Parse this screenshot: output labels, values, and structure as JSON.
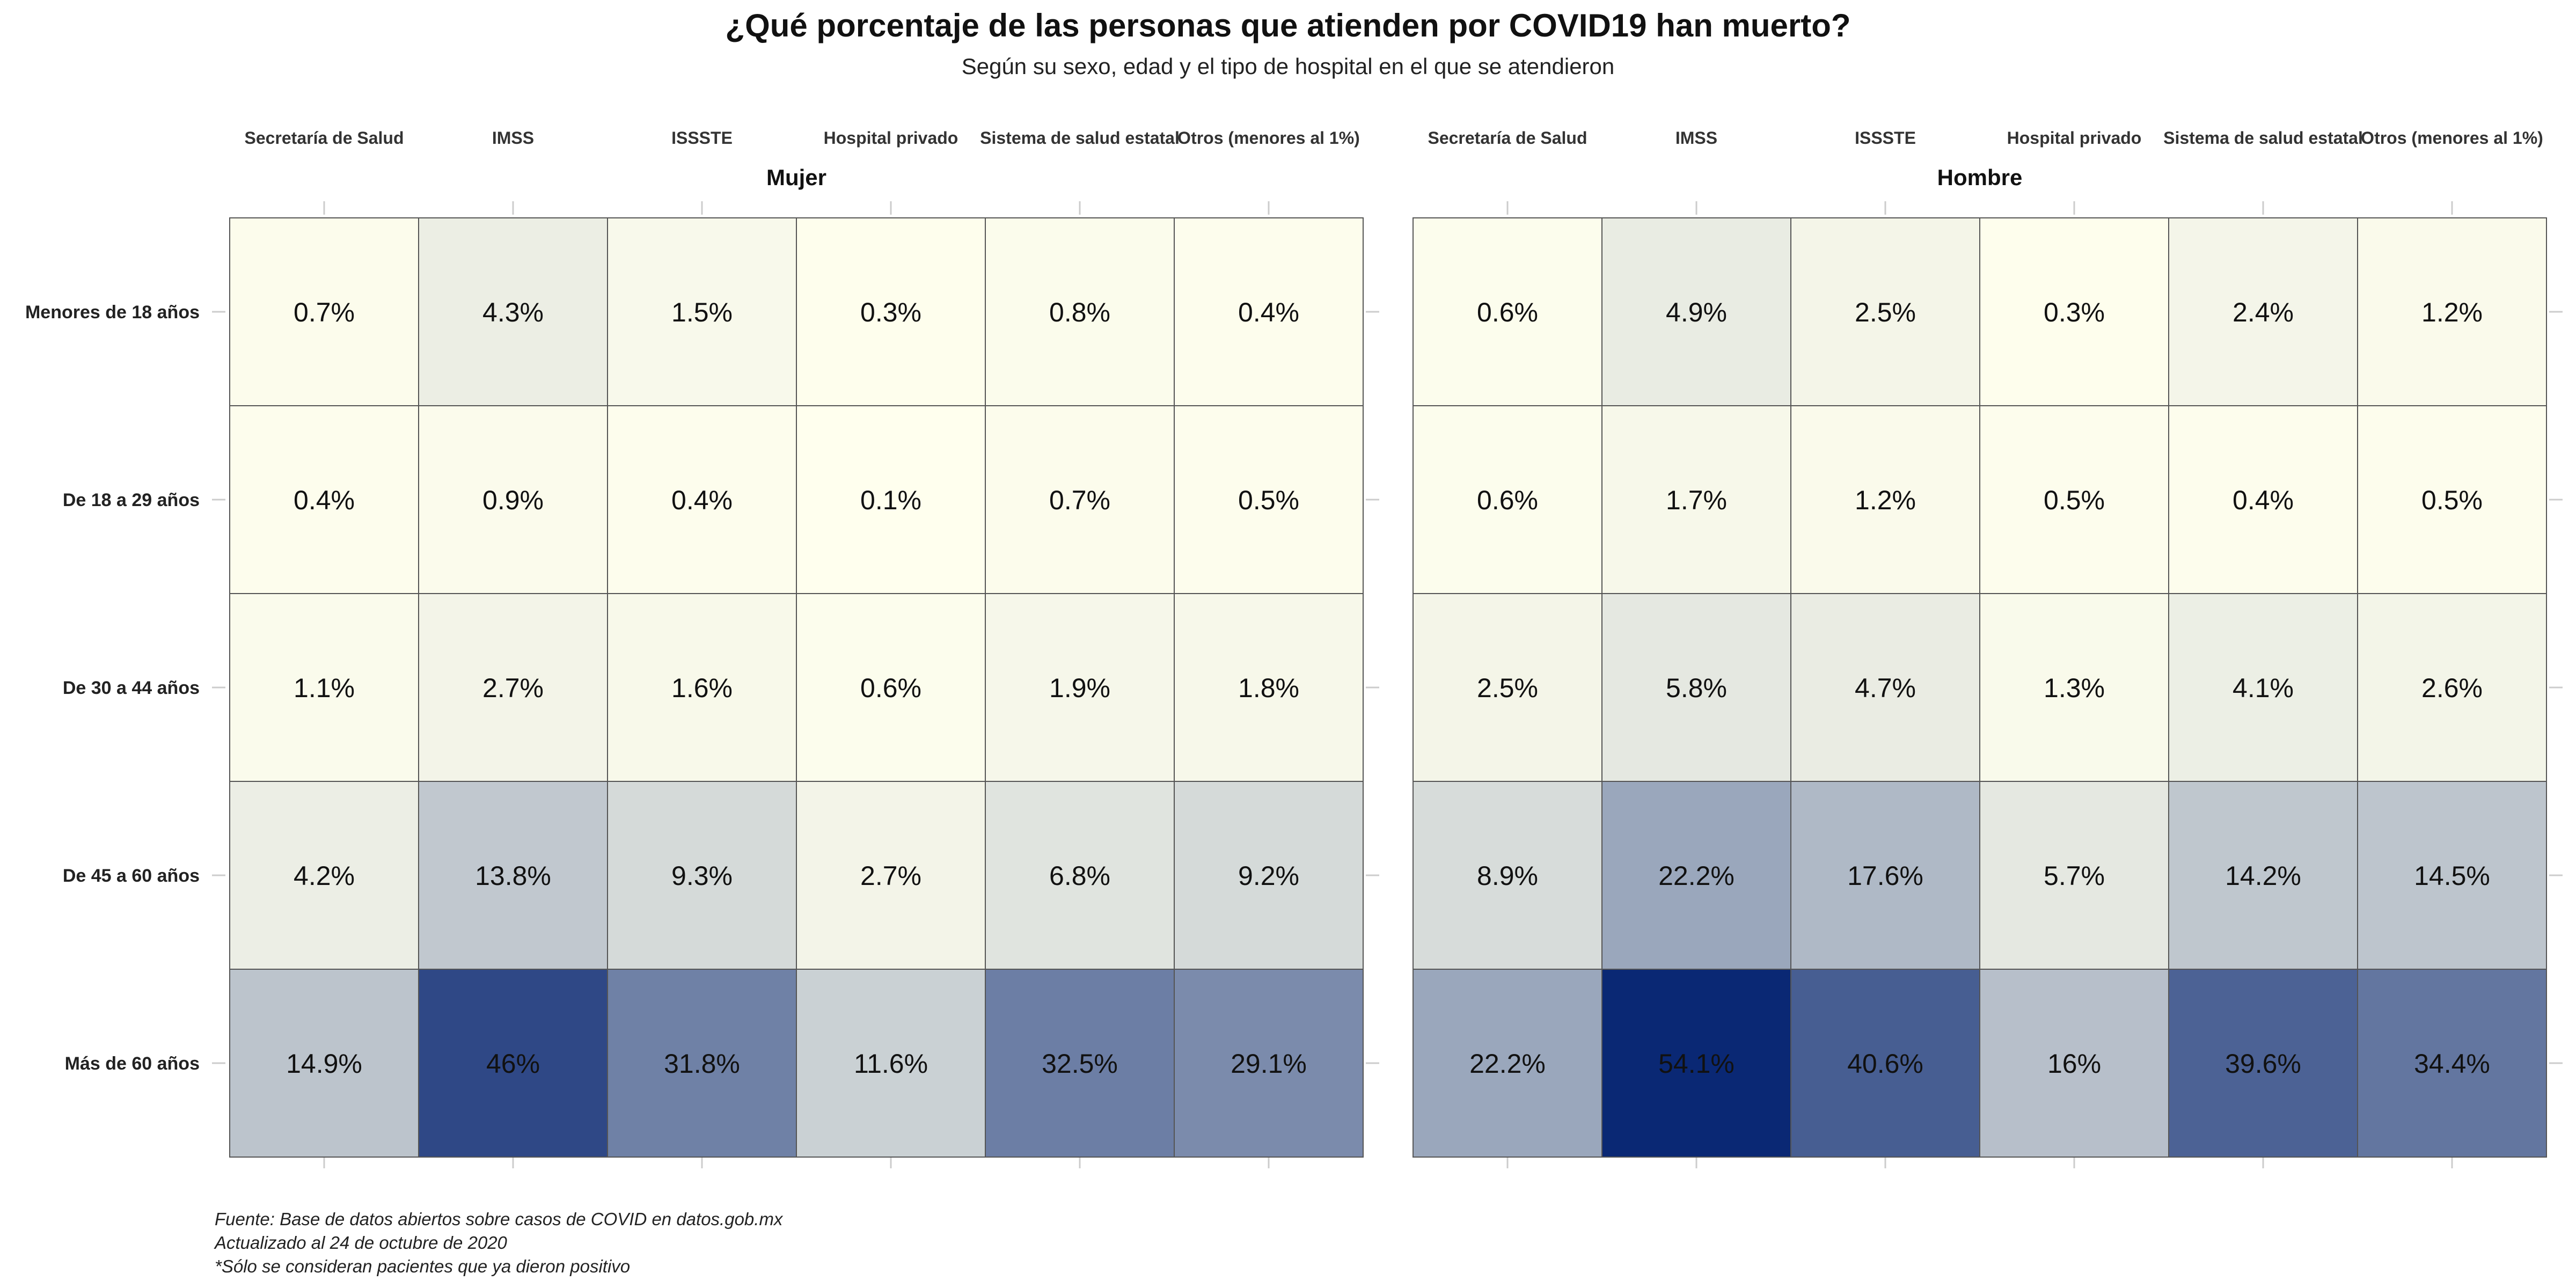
{
  "chart_data": {
    "type": "heatmap",
    "title": "¿Qué porcentaje de las personas que atienden por COVID19 han muerto?",
    "subtitle": "Según su sexo, edad y el tipo de hospital en el que se atendieron",
    "columns": [
      "Secretaría de Salud",
      "IMSS",
      "ISSSTE",
      "Hospital privado",
      "Sistema de salud estatal",
      "Otros (menores al 1%)"
    ],
    "rows": [
      "Menores de 18 años",
      "De 18 a 29 años",
      "De 30 a 44 años",
      "De 45 a 60 años",
      "Más de 60 años"
    ],
    "facets": [
      {
        "name": "Mujer",
        "values": [
          [
            0.7,
            4.3,
            1.5,
            0.3,
            0.8,
            0.4
          ],
          [
            0.4,
            0.9,
            0.4,
            0.1,
            0.7,
            0.5
          ],
          [
            1.1,
            2.7,
            1.6,
            0.6,
            1.9,
            1.8
          ],
          [
            4.2,
            13.8,
            9.3,
            2.7,
            6.8,
            9.2
          ],
          [
            14.9,
            46,
            31.8,
            11.6,
            32.5,
            29.1
          ]
        ],
        "labels": [
          [
            "0.7%",
            "4.3%",
            "1.5%",
            "0.3%",
            "0.8%",
            "0.4%"
          ],
          [
            "0.4%",
            "0.9%",
            "0.4%",
            "0.1%",
            "0.7%",
            "0.5%"
          ],
          [
            "1.1%",
            "2.7%",
            "1.6%",
            "0.6%",
            "1.9%",
            "1.8%"
          ],
          [
            "4.2%",
            "13.8%",
            "9.3%",
            "2.7%",
            "6.8%",
            "9.2%"
          ],
          [
            "14.9%",
            "46%",
            "31.8%",
            "11.6%",
            "32.5%",
            "29.1%"
          ]
        ]
      },
      {
        "name": "Hombre",
        "values": [
          [
            0.6,
            4.9,
            2.5,
            0.3,
            2.4,
            1.2
          ],
          [
            0.6,
            1.7,
            1.2,
            0.5,
            0.4,
            0.5
          ],
          [
            2.5,
            5.8,
            4.7,
            1.3,
            4.1,
            2.6
          ],
          [
            8.9,
            22.2,
            17.6,
            5.7,
            14.2,
            14.5
          ],
          [
            22.2,
            54.1,
            40.6,
            16,
            39.6,
            34.4
          ]
        ],
        "labels": [
          [
            "0.6%",
            "4.9%",
            "2.5%",
            "0.3%",
            "2.4%",
            "1.2%"
          ],
          [
            "0.6%",
            "1.7%",
            "1.2%",
            "0.5%",
            "0.4%",
            "0.5%"
          ],
          [
            "2.5%",
            "5.8%",
            "4.7%",
            "1.3%",
            "4.1%",
            "2.6%"
          ],
          [
            "8.9%",
            "22.2%",
            "17.6%",
            "5.7%",
            "14.2%",
            "14.5%"
          ],
          [
            "22.2%",
            "54.1%",
            "40.6%",
            "16%",
            "39.6%",
            "34.4%"
          ]
        ]
      }
    ],
    "color_scale": {
      "low": "#ffffee",
      "high": "#0a2874",
      "domain": [
        0,
        54.1
      ]
    },
    "caption": [
      "Fuente: Base de datos abiertos sobre casos de COVID en datos.gob.mx",
      "Actualizado al 24 de octubre de 2020",
      "*Sólo se consideran pacientes que ya dieron positivo"
    ]
  }
}
